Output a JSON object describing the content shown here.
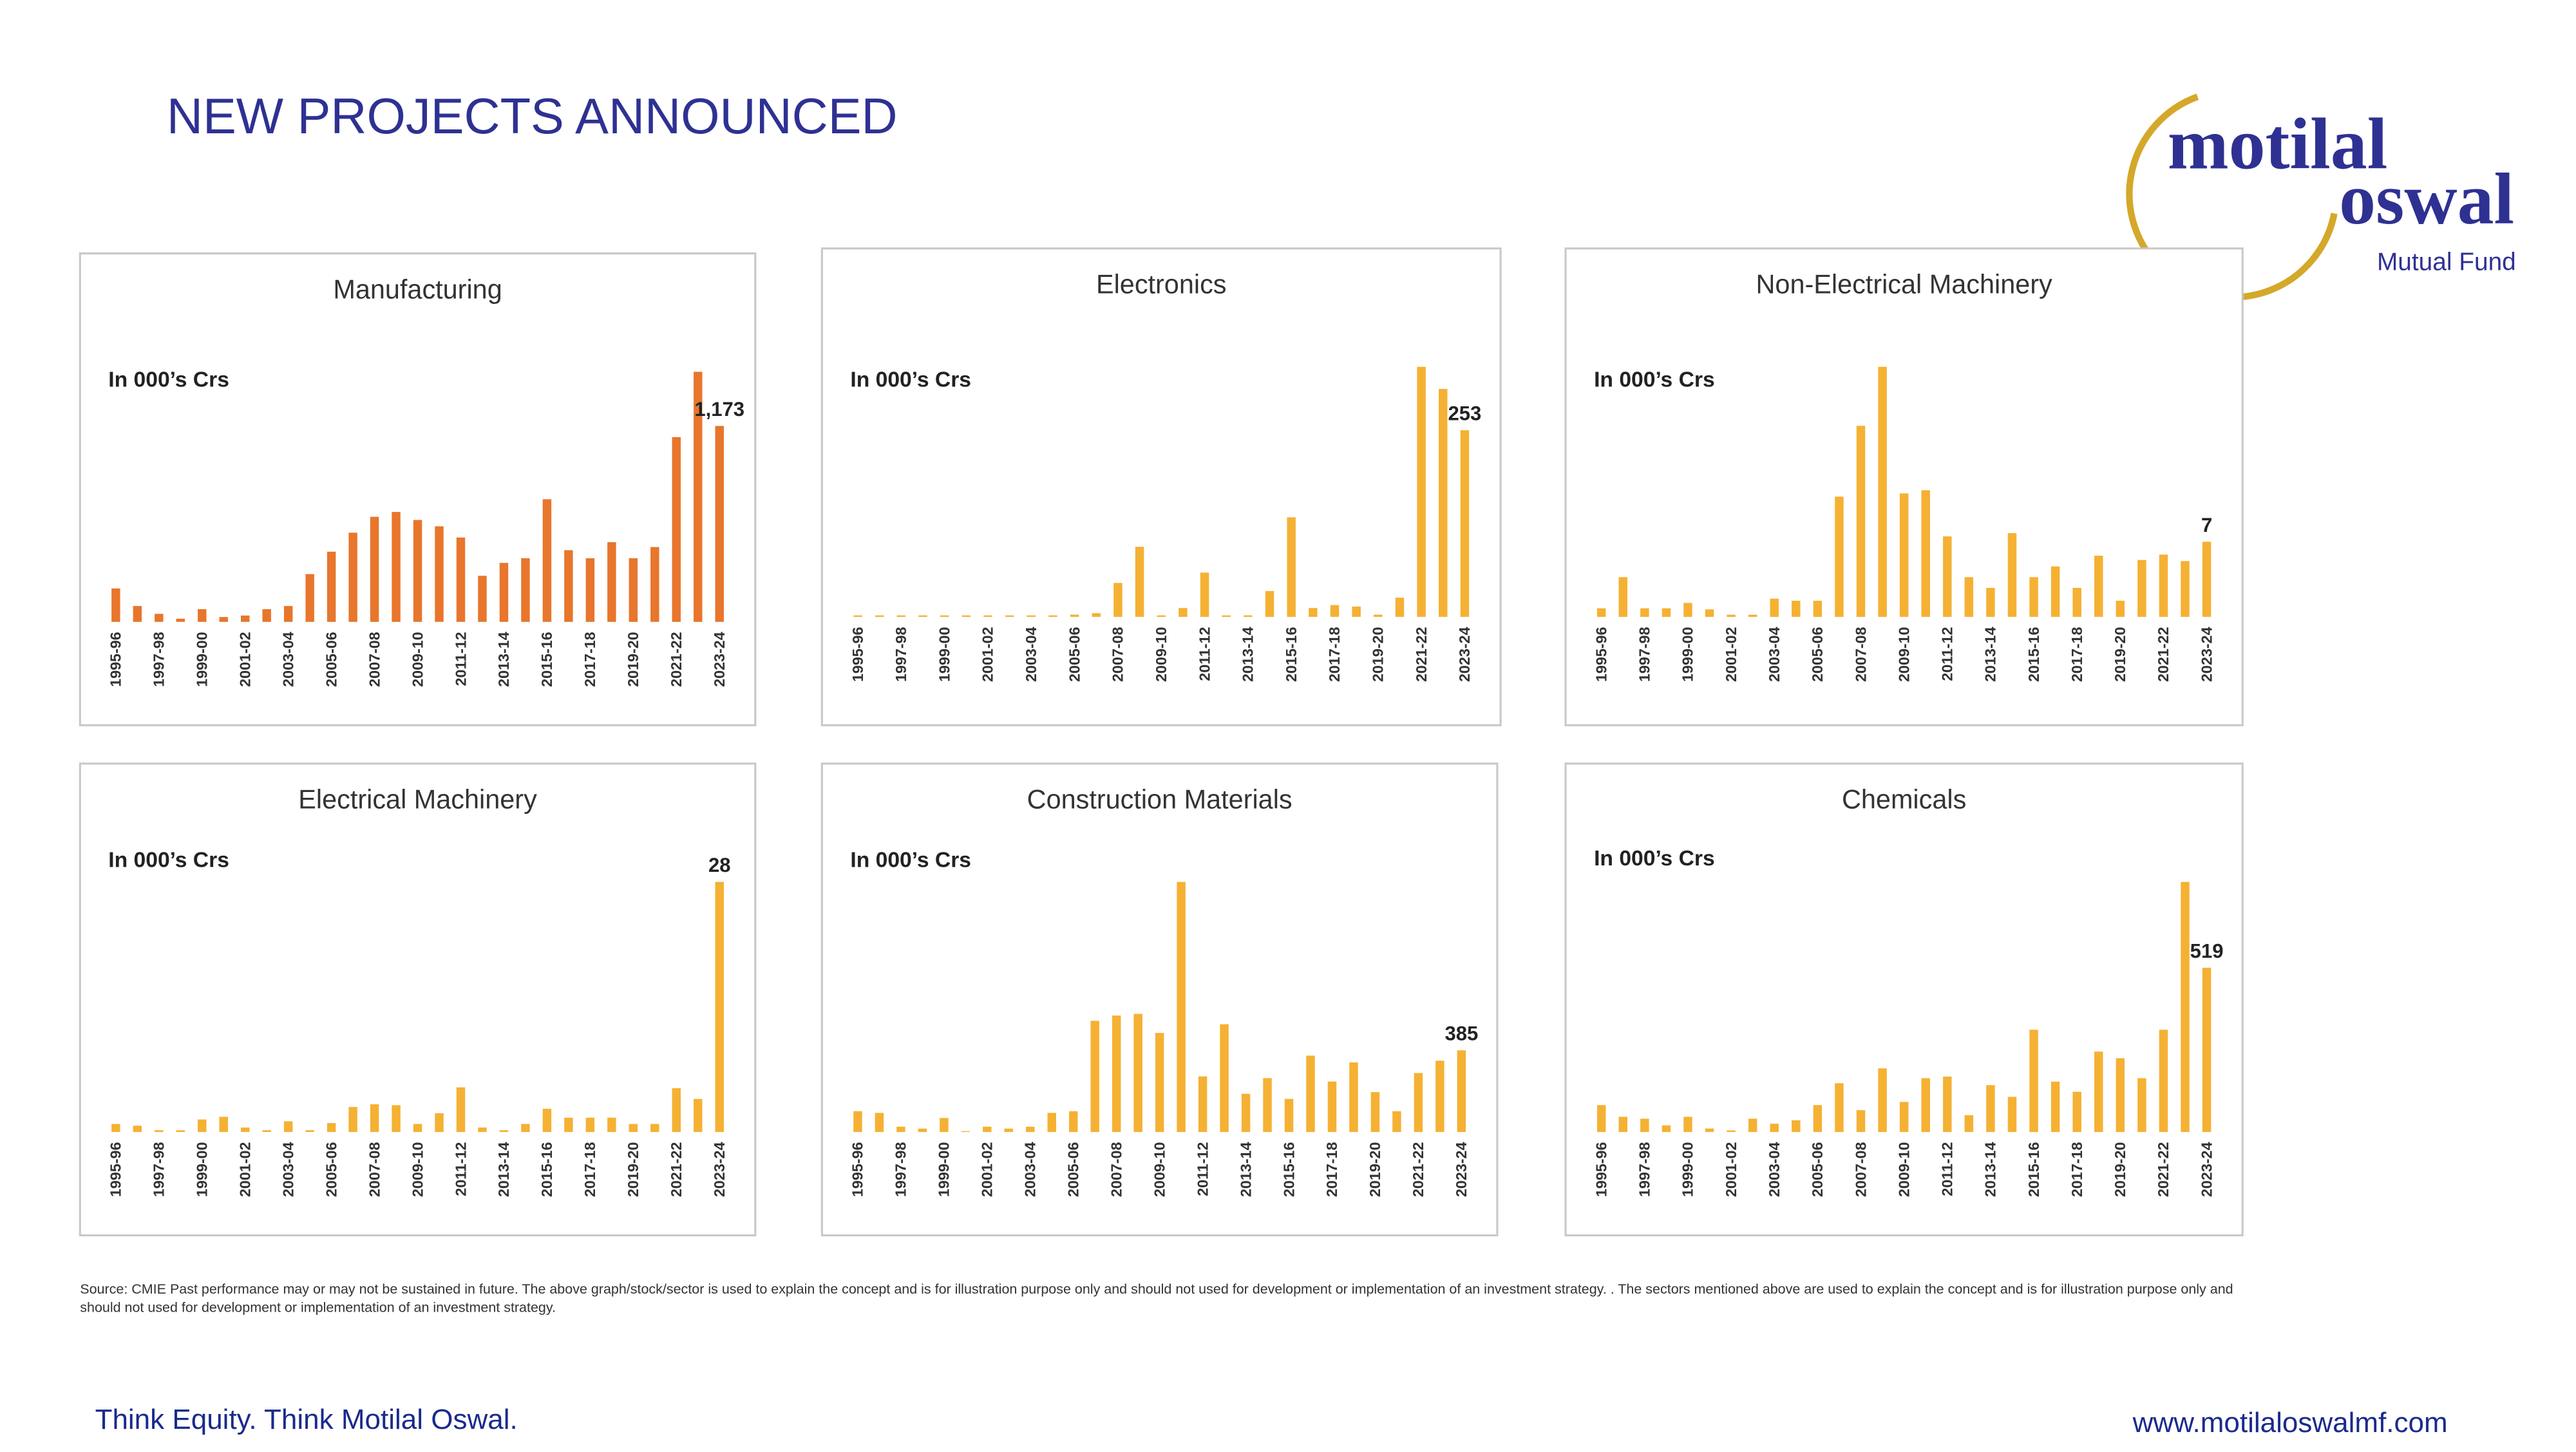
{
  "header": {
    "title": "NEW PROJECTS ANNOUNCED"
  },
  "logo": {
    "line1": "motilal",
    "line2": "oswal",
    "line3": "Mutual Fund"
  },
  "source": "Source: CMIE Past performance may or may not be sustained in future. The above graph/stock/sector is used to explain the concept and is for illustration purpose only and should not used for development or implementation of an investment strategy. . The sectors mentioned above are used to explain the concept and is for illustration purpose only and should not used for development or implementation of an investment strategy.",
  "footer": {
    "left": "Think Equity. Think Motilal Oswal.",
    "right": "www.motilaloswalmf.com"
  },
  "chart_data": [
    {
      "type": "bar",
      "title": "Manufacturing",
      "subtitle": "In 000’s Crs",
      "color": "#e8762c",
      "categories": [
        "1995-96",
        null,
        "1997-98",
        null,
        "1999-00",
        null,
        "2001-02",
        null,
        "2003-04",
        null,
        "2005-06",
        null,
        "2007-08",
        null,
        "2009-10",
        null,
        "2011-12",
        null,
        "2013-14",
        null,
        "2015-16",
        null,
        "2017-18",
        null,
        "2019-20",
        null,
        "2021-22",
        null,
        "2023-24"
      ],
      "values": [
        200,
        95,
        48,
        19,
        76,
        29,
        38,
        76,
        95,
        286,
        420,
        534,
        629,
        658,
        610,
        572,
        505,
        276,
        353,
        381,
        734,
        429,
        381,
        477,
        381,
        448,
        1106,
        1497,
        1173
      ],
      "value_labels": [
        null,
        null,
        null,
        null,
        null,
        null,
        null,
        null,
        null,
        null,
        null,
        null,
        null,
        null,
        null,
        null,
        null,
        null,
        null,
        null,
        null,
        null,
        null,
        null,
        null,
        null,
        null,
        null,
        "1,173"
      ]
    },
    {
      "type": "bar",
      "title": "Electronics",
      "subtitle": "In 000’s Crs",
      "color": "#f5b133",
      "categories": [
        "1995-96",
        null,
        "1997-98",
        null,
        "1999-00",
        null,
        "2001-02",
        null,
        "2003-04",
        null,
        "2005-06",
        null,
        "2007-08",
        null,
        "2009-10",
        null,
        "2011-12",
        null,
        "2013-14",
        null,
        "2015-16",
        null,
        "2017-18",
        null,
        "2019-20",
        null,
        "2021-22",
        null,
        "2023-24"
      ],
      "values": [
        2,
        2,
        2,
        2,
        2,
        2,
        2,
        2,
        2,
        2,
        3,
        5,
        46,
        95,
        2,
        12,
        60,
        2,
        2,
        35,
        135,
        12,
        16,
        14,
        3,
        26,
        339,
        309,
        253
      ],
      "value_labels": [
        null,
        null,
        null,
        null,
        null,
        null,
        null,
        null,
        null,
        null,
        null,
        null,
        null,
        null,
        null,
        null,
        null,
        null,
        null,
        null,
        null,
        null,
        null,
        null,
        null,
        null,
        null,
        null,
        "253"
      ]
    },
    {
      "type": "bar",
      "title": "Non-Electrical Machinery",
      "subtitle": "In 000’s Crs",
      "color": "#f5b133",
      "categories": [
        "1995-96",
        null,
        "1997-98",
        null,
        "1999-00",
        null,
        "2001-02",
        null,
        "2003-04",
        null,
        "2005-06",
        null,
        "2007-08",
        null,
        "2009-10",
        null,
        "2011-12",
        null,
        "2013-14",
        null,
        "2015-16",
        null,
        "2017-18",
        null,
        "2019-20",
        null,
        "2021-22",
        null,
        "2023-24"
      ],
      "values": [
        0.8,
        3.7,
        0.8,
        0.8,
        1.3,
        0.7,
        0.2,
        0.2,
        1.7,
        1.5,
        1.5,
        11.2,
        17.8,
        23.3,
        11.5,
        11.8,
        7.5,
        3.7,
        2.7,
        7.8,
        3.7,
        4.7,
        2.7,
        5.7,
        1.5,
        5.3,
        5.8,
        5.2,
        7
      ],
      "value_labels": [
        null,
        null,
        null,
        null,
        null,
        null,
        null,
        null,
        null,
        null,
        null,
        null,
        null,
        null,
        null,
        null,
        null,
        null,
        null,
        null,
        null,
        null,
        null,
        null,
        null,
        null,
        null,
        null,
        "7"
      ]
    },
    {
      "type": "bar",
      "title": "Electrical Machinery",
      "subtitle": "In 000’s Crs",
      "color": "#f5b133",
      "categories": [
        "1995-96",
        null,
        "1997-98",
        null,
        "1999-00",
        null,
        "2001-02",
        null,
        "2003-04",
        null,
        "2005-06",
        null,
        "2007-08",
        null,
        "2009-10",
        null,
        "2011-12",
        null,
        "2013-14",
        null,
        "2015-16",
        null,
        "2017-18",
        null,
        "2019-20",
        null,
        "2021-22",
        null,
        "2023-24"
      ],
      "values": [
        0.9,
        0.7,
        0.2,
        0.2,
        1.4,
        1.7,
        0.5,
        0.2,
        1.2,
        0.2,
        1.0,
        2.8,
        3.1,
        3.0,
        0.9,
        2.1,
        5.0,
        0.5,
        0.2,
        0.9,
        2.6,
        1.6,
        1.6,
        1.6,
        0.9,
        0.9,
        4.9,
        3.7,
        28
      ],
      "value_labels": [
        null,
        null,
        null,
        null,
        null,
        null,
        null,
        null,
        null,
        null,
        null,
        null,
        null,
        null,
        null,
        null,
        null,
        null,
        null,
        null,
        null,
        null,
        null,
        null,
        null,
        null,
        null,
        null,
        "28"
      ]
    },
    {
      "type": "bar",
      "title": "Construction Materials",
      "subtitle": "In 000’s Crs",
      "color": "#f5b133",
      "categories": [
        "1995-96",
        null,
        "1997-98",
        null,
        "1999-00",
        null,
        "2001-02",
        null,
        "2003-04",
        null,
        "2005-06",
        null,
        "2007-08",
        null,
        "2009-10",
        null,
        "2011-12",
        null,
        "2013-14",
        null,
        "2015-16",
        null,
        "2017-18",
        null,
        "2019-20",
        null,
        "2021-22",
        null,
        "2023-24"
      ],
      "values": [
        98,
        90,
        25,
        16,
        66,
        4,
        25,
        16,
        25,
        90,
        98,
        524,
        549,
        557,
        467,
        1179,
        262,
        508,
        180,
        254,
        156,
        360,
        238,
        328,
        188,
        98,
        278,
        336,
        385
      ],
      "value_labels": [
        null,
        null,
        null,
        null,
        null,
        null,
        null,
        null,
        null,
        null,
        null,
        null,
        null,
        null,
        null,
        null,
        null,
        null,
        null,
        null,
        null,
        null,
        null,
        null,
        null,
        null,
        null,
        null,
        "385"
      ]
    },
    {
      "type": "bar",
      "title": "Chemicals",
      "subtitle": "In 000’s Crs",
      "color": "#f5b133",
      "categories": [
        "1995-96",
        null,
        "1997-98",
        null,
        "1999-00",
        null,
        "2001-02",
        null,
        "2003-04",
        null,
        "2005-06",
        null,
        "2007-08",
        null,
        "2009-10",
        null,
        "2011-12",
        null,
        "2013-14",
        null,
        "2015-16",
        null,
        "2017-18",
        null,
        "2019-20",
        null,
        "2021-22",
        null,
        "2023-24"
      ],
      "values": [
        85,
        48,
        42,
        21,
        48,
        11,
        5,
        42,
        26,
        37,
        85,
        154,
        69,
        201,
        95,
        170,
        175,
        53,
        148,
        111,
        323,
        159,
        127,
        254,
        233,
        170,
        323,
        790,
        519
      ],
      "value_labels": [
        null,
        null,
        null,
        null,
        null,
        null,
        null,
        null,
        null,
        null,
        null,
        null,
        null,
        null,
        null,
        null,
        null,
        null,
        null,
        null,
        null,
        null,
        null,
        null,
        null,
        null,
        null,
        null,
        "519"
      ]
    }
  ]
}
